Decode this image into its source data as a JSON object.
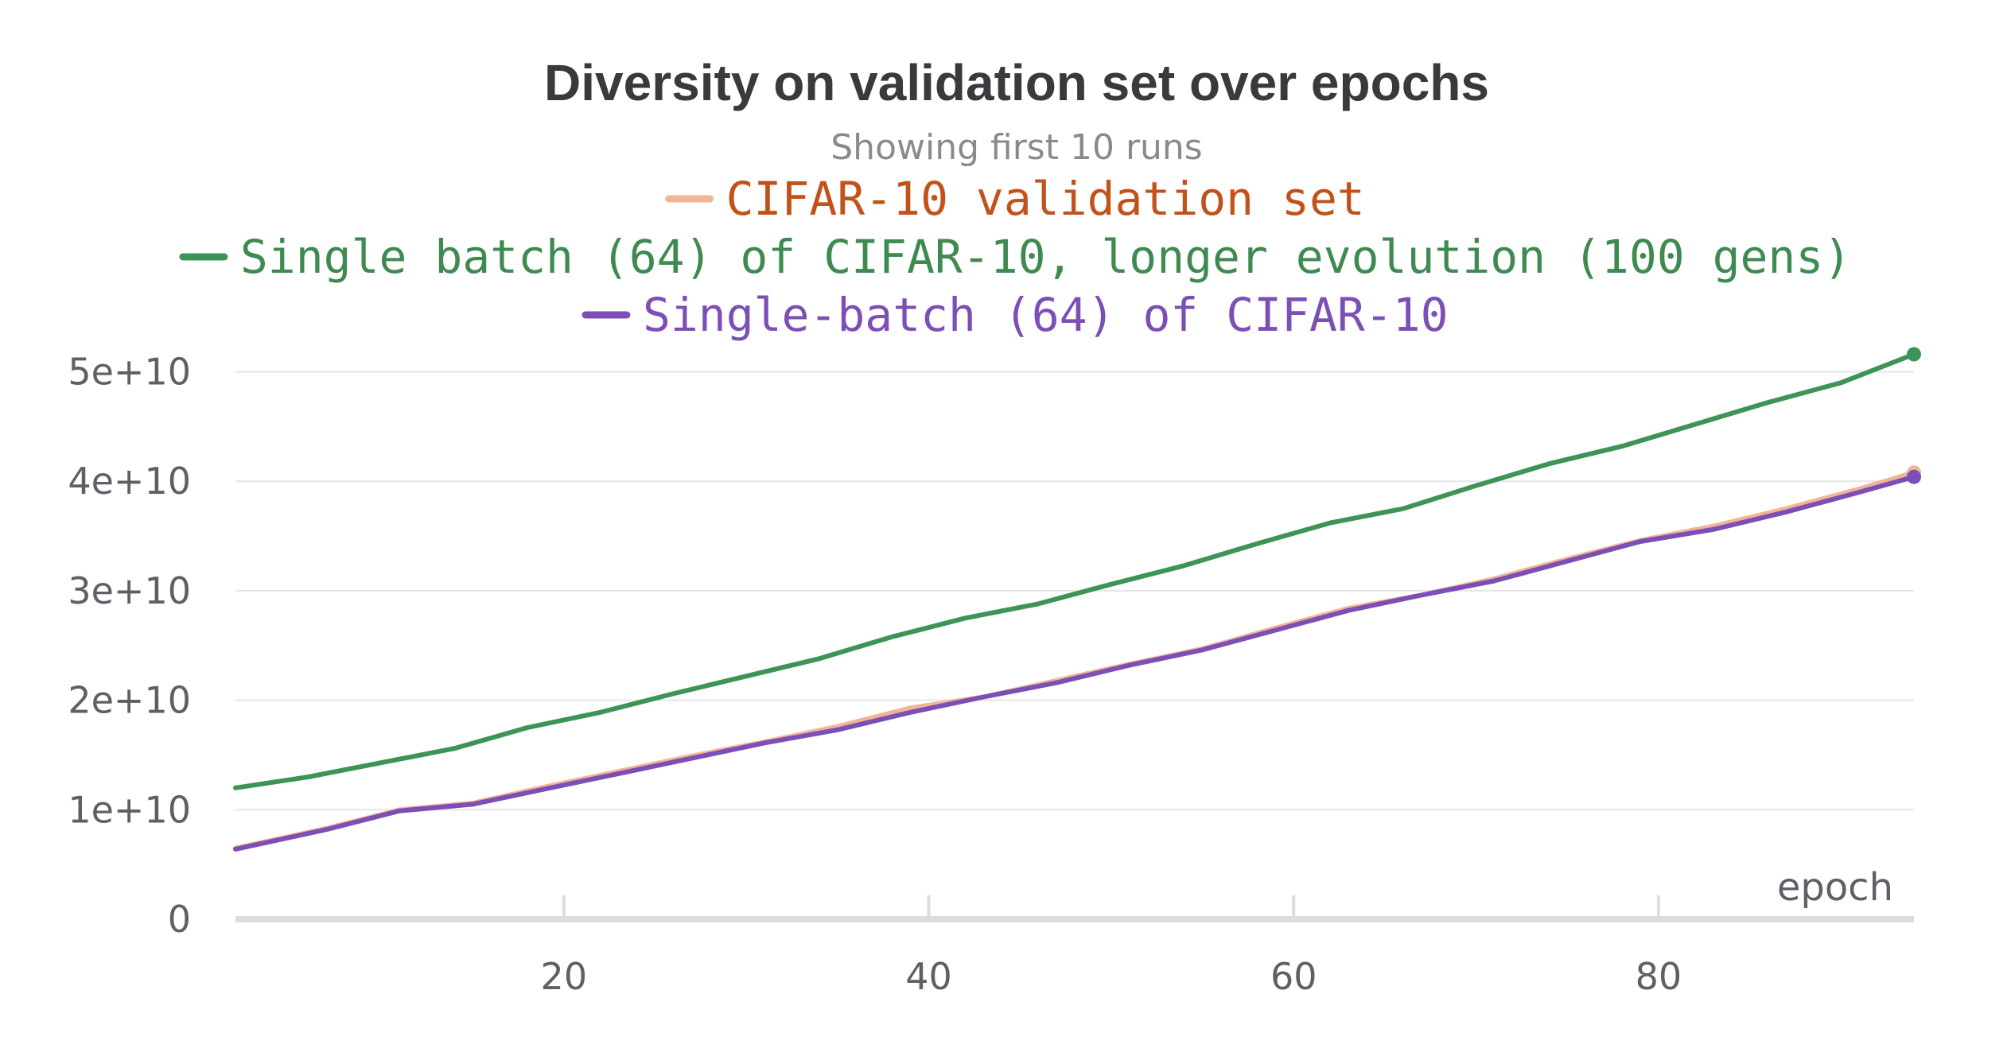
{
  "chart_data": {
    "type": "line",
    "title": "Diversity on validation set over epochs",
    "subtitle": "Showing first 10 runs",
    "xlabel": "epoch",
    "ylabel": "",
    "xlim": [
      2,
      94
    ],
    "ylim": [
      0,
      52000000000
    ],
    "x_ticks": [
      20,
      40,
      60,
      80
    ],
    "x_tick_labels": [
      "20",
      "40",
      "60",
      "80"
    ],
    "y_ticks": [
      0,
      10000000000,
      20000000000,
      30000000000,
      40000000000,
      50000000000
    ],
    "y_tick_labels": [
      "0",
      "1e+10",
      "2e+10",
      "3e+10",
      "4e+10",
      "5e+10"
    ],
    "grid": true,
    "legend_position": "top-center",
    "series": [
      {
        "name": "CIFAR-10 validation set",
        "line_color": "#f0b596",
        "text_color": "#c1531a",
        "x": [
          2,
          7,
          11,
          15,
          19,
          23,
          27,
          31,
          35,
          39,
          43,
          47,
          51,
          55,
          59,
          63,
          67,
          71,
          75,
          79,
          83,
          87,
          91,
          94
        ],
        "y": [
          6500000000,
          8300000000,
          10000000000,
          10600000000,
          12100000000,
          13500000000,
          14900000000,
          16200000000,
          17600000000,
          19300000000,
          20300000000,
          21800000000,
          23300000000,
          24700000000,
          26600000000,
          28400000000,
          29600000000,
          31100000000,
          32900000000,
          34600000000,
          35900000000,
          37500000000,
          39300000000,
          40800000000
        ]
      },
      {
        "name": "Single batch (64) of CIFAR-10, longer evolution (100 gens)",
        "line_color": "#3e9457",
        "text_color": "#3e8a50",
        "x": [
          2,
          6,
          10,
          14,
          18,
          22,
          26,
          30,
          34,
          38,
          42,
          46,
          50,
          54,
          58,
          62,
          66,
          70,
          74,
          78,
          82,
          86,
          90,
          94
        ],
        "y": [
          12000000000,
          13000000000,
          14300000000,
          15600000000,
          17500000000,
          18900000000,
          20600000000,
          22200000000,
          23800000000,
          25800000000,
          27500000000,
          28800000000,
          30600000000,
          32300000000,
          34300000000,
          36200000000,
          37500000000,
          39600000000,
          41600000000,
          43200000000,
          45200000000,
          47200000000,
          49000000000,
          51600000000
        ]
      },
      {
        "name": "Single-batch (64) of CIFAR-10",
        "line_color": "#7b4fb5",
        "text_color": "#7b4fb5",
        "x": [
          2,
          7,
          11,
          15,
          19,
          23,
          27,
          31,
          35,
          39,
          43,
          47,
          51,
          55,
          59,
          63,
          67,
          71,
          75,
          79,
          83,
          87,
          91,
          94
        ],
        "y": [
          6400000000,
          8200000000,
          9900000000,
          10500000000,
          11900000000,
          13300000000,
          14700000000,
          16100000000,
          17300000000,
          18900000000,
          20300000000,
          21600000000,
          23200000000,
          24600000000,
          26400000000,
          28200000000,
          29600000000,
          30900000000,
          32700000000,
          34500000000,
          35600000000,
          37200000000,
          39000000000,
          40400000000
        ]
      }
    ]
  }
}
